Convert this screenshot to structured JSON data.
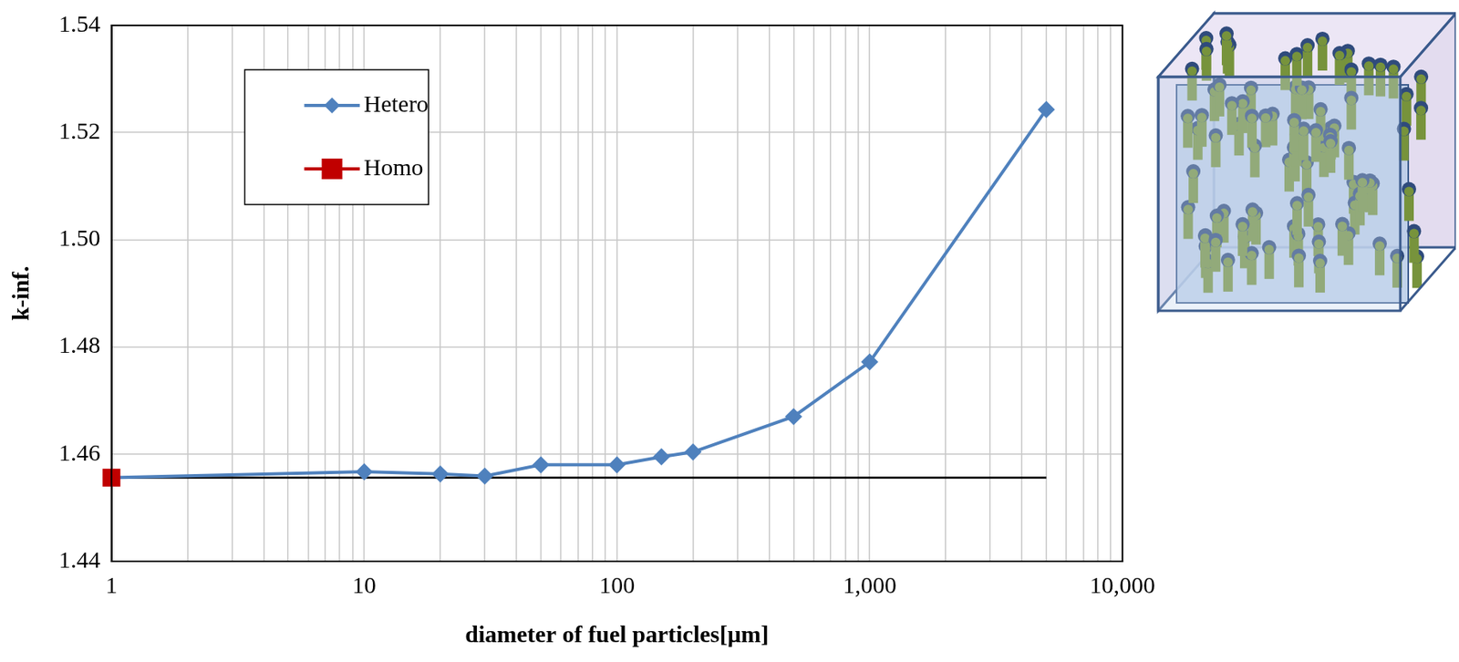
{
  "chart_data": {
    "type": "line",
    "x_label": "diameter of fuel particles[μm]",
    "y_label": "k-inf.",
    "series": [
      {
        "name": "Hetero",
        "color": "#4f81bd",
        "marker": "diamond",
        "line_style": "solid",
        "x": [
          1,
          10,
          20,
          30,
          50,
          100,
          150,
          200,
          500,
          1000,
          5000
        ],
        "values": [
          1.4556,
          1.4567,
          1.4563,
          1.4559,
          1.458,
          1.458,
          1.4595,
          1.4604,
          1.467,
          1.4772,
          1.5243
        ]
      },
      {
        "name": "Homo",
        "color": "#c00000",
        "marker": "square",
        "line_style": "solid",
        "x": [
          1
        ],
        "values": [
          1.4556
        ]
      }
    ],
    "reference_line": {
      "x": [
        1,
        5000
      ],
      "values": [
        1.4556,
        1.4556
      ],
      "color": "#000000"
    },
    "log": "x",
    "xlim": [
      1,
      10000
    ],
    "xticks": [
      1,
      10,
      100,
      {
        "value": 1000,
        "label": "1,000"
      },
      {
        "value": 10000,
        "label": "10,000"
      }
    ],
    "ylim": [
      1.44,
      1.54
    ],
    "yticks": [
      1.44,
      1.46,
      1.48,
      {
        "value": 1.5,
        "label": "1.50"
      },
      1.52,
      1.54
    ],
    "grid": true,
    "legend": "upper left"
  }
}
